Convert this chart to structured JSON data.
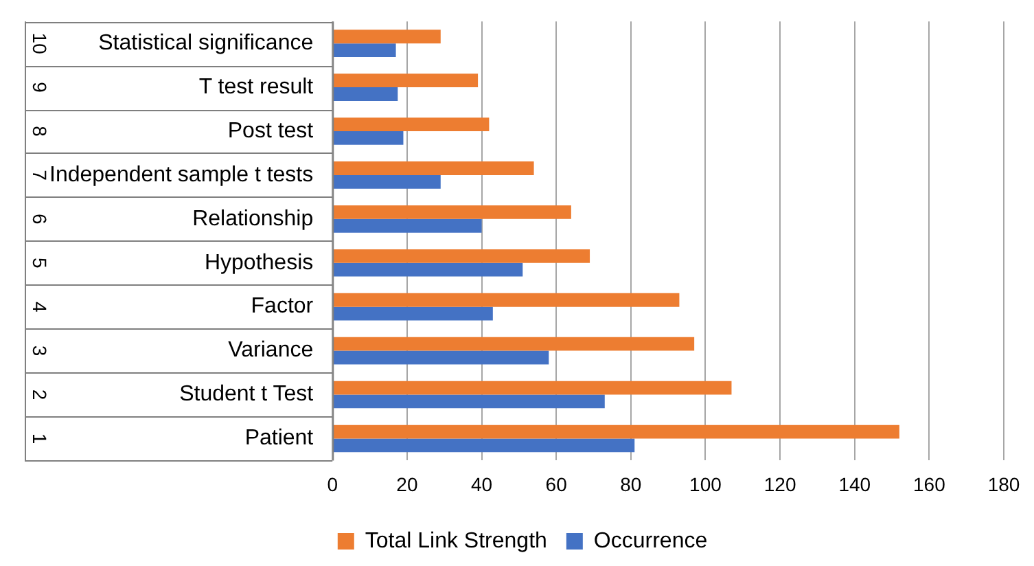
{
  "chart_data": {
    "type": "bar",
    "orientation": "horizontal",
    "categories": [
      "Statistical significance",
      "T test result",
      "Post test",
      "Independent sample t tests",
      "Relationship",
      "Hypothesis",
      "Factor",
      "Variance",
      "Student t Test",
      "Patient"
    ],
    "series": [
      {
        "name": "Total Link Strength",
        "color": "#ed7d31",
        "values": [
          29,
          39,
          42,
          54,
          64,
          69,
          93,
          97,
          107,
          152
        ]
      },
      {
        "name": "Occurrence",
        "color": "#4472c4",
        "values": [
          17,
          17.5,
          19,
          29,
          40,
          51,
          43,
          58,
          73,
          81
        ]
      }
    ],
    "annotations": [
      "10",
      "9",
      "8",
      "7",
      "6",
      "5",
      "4",
      "3",
      "2",
      "1"
    ],
    "xlim": [
      0,
      180
    ],
    "xticks": [
      0,
      20,
      40,
      60,
      80,
      100,
      120,
      140,
      160,
      180
    ],
    "grid": "x",
    "legend": "bottom"
  }
}
